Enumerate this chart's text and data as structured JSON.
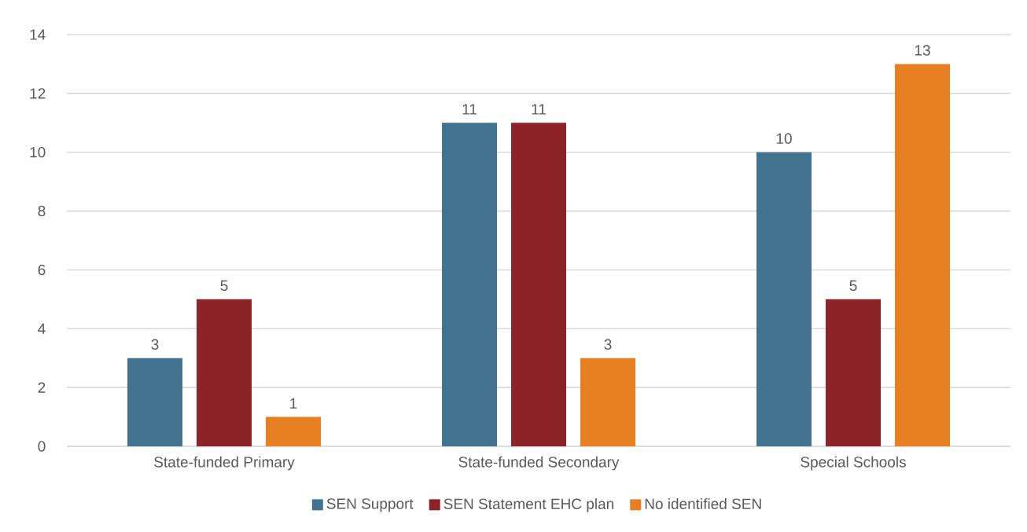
{
  "chart_data": {
    "type": "bar",
    "categories": [
      "State-funded Primary",
      "State-funded Secondary",
      "Special Schools"
    ],
    "series": [
      {
        "name": "SEN Support",
        "color": "#41728f",
        "values": [
          3,
          11,
          10
        ]
      },
      {
        "name": "SEN Statement EHC plan",
        "color": "#8b2329",
        "values": [
          5,
          11,
          5
        ]
      },
      {
        "name": "No identified SEN",
        "color": "#e67e22",
        "values": [
          1,
          3,
          13
        ]
      }
    ],
    "ylim": [
      0,
      14
    ],
    "yticks": [
      0,
      2,
      4,
      6,
      8,
      10,
      12,
      14
    ],
    "grid": "y",
    "legend": "bottom",
    "data_labels": true
  }
}
